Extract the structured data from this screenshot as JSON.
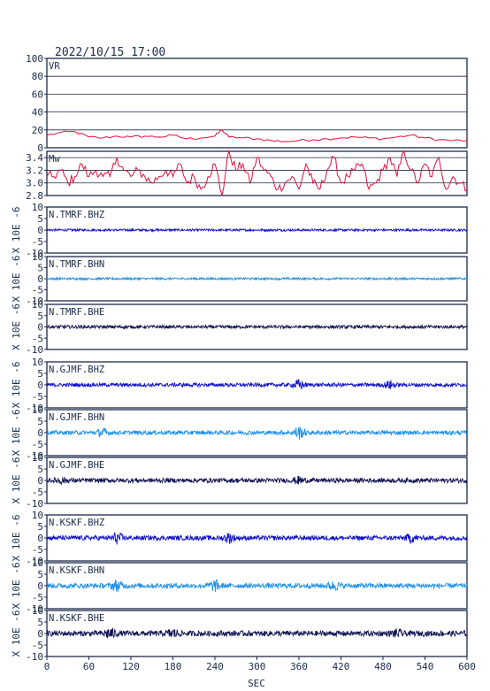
{
  "header": {
    "datetime": "2022/10/15 17:00"
  },
  "colors": {
    "frame": "#1c2a4a",
    "vr_line": "#e0103c",
    "mw_line": "#e0103c",
    "z_trace": "#1010c8",
    "n_trace": "#1e90e8",
    "e_trace": "#101050"
  },
  "chart_data": [
    {
      "type": "line",
      "panel": "vr",
      "label": "VR",
      "ylim": [
        0,
        100
      ],
      "yticks": [
        0,
        20,
        40,
        60,
        80,
        100
      ],
      "grid": true,
      "x": [
        0,
        20,
        40,
        60,
        80,
        100,
        120,
        140,
        160,
        180,
        200,
        220,
        240,
        250,
        260,
        280,
        300,
        320,
        340,
        360,
        380,
        400,
        420,
        440,
        460,
        480,
        500,
        520,
        540,
        560,
        580,
        600
      ],
      "values": [
        14,
        17,
        18,
        12,
        11,
        13,
        12,
        13,
        12,
        14,
        10,
        11,
        13,
        20,
        12,
        11,
        10,
        8,
        7,
        8,
        9,
        10,
        11,
        12,
        11,
        10,
        12,
        14,
        11,
        9,
        8,
        8
      ]
    },
    {
      "type": "line",
      "panel": "mw",
      "label": "Mw",
      "ylim": [
        2.8,
        3.5
      ],
      "yticks": [
        2.8,
        3.0,
        3.2,
        3.4
      ],
      "grid": true,
      "x": [
        0,
        10,
        20,
        30,
        40,
        50,
        60,
        70,
        80,
        90,
        100,
        110,
        120,
        130,
        140,
        150,
        160,
        170,
        180,
        190,
        200,
        210,
        220,
        230,
        240,
        250,
        260,
        270,
        280,
        290,
        300,
        310,
        320,
        330,
        340,
        350,
        360,
        370,
        380,
        390,
        400,
        410,
        420,
        430,
        440,
        450,
        460,
        470,
        480,
        490,
        500,
        510,
        520,
        530,
        540,
        550,
        560,
        570,
        580,
        590,
        600
      ],
      "values": [
        3.1,
        3.1,
        3.2,
        3.0,
        3.1,
        3.3,
        3.1,
        3.2,
        3.1,
        3.1,
        3.4,
        3.2,
        3.1,
        3.2,
        3.1,
        3.0,
        3.1,
        3.2,
        3.1,
        3.3,
        3.0,
        3.1,
        2.9,
        3.1,
        3.3,
        2.8,
        3.5,
        3.2,
        3.3,
        3.0,
        3.4,
        3.2,
        3.1,
        2.9,
        3.0,
        3.1,
        2.9,
        3.3,
        3.0,
        2.9,
        3.2,
        3.4,
        3.0,
        3.1,
        3.2,
        3.3,
        2.9,
        3.0,
        3.2,
        3.4,
        3.1,
        3.5,
        3.2,
        3.0,
        3.3,
        3.1,
        3.4,
        2.9,
        3.1,
        3.0,
        2.9
      ]
    },
    {
      "type": "line",
      "panel": "waveform",
      "label": "N.TMRF.BHZ",
      "ylim": [
        -10,
        10
      ],
      "yticks": [
        -10,
        -5,
        0,
        5,
        10
      ],
      "ylabel": "X 10E -6",
      "color_key": "z_trace",
      "amplitude": 0.5,
      "bursts": []
    },
    {
      "type": "line",
      "panel": "waveform",
      "label": "N.TMRF.BHN",
      "ylim": [
        -10,
        10
      ],
      "yticks": [
        -10,
        -5,
        0,
        5,
        10
      ],
      "ylabel": "X 10E -6",
      "color_key": "n_trace",
      "amplitude": 0.5,
      "bursts": []
    },
    {
      "type": "line",
      "panel": "waveform",
      "label": "N.TMRF.BHE",
      "ylim": [
        -10,
        10
      ],
      "yticks": [
        -10,
        -5,
        0,
        5,
        10
      ],
      "ylabel": "X 10E -6",
      "color_key": "e_trace",
      "amplitude": 0.7,
      "bursts": []
    },
    {
      "type": "line",
      "panel": "waveform",
      "label": "N.GJMF.BHZ",
      "ylim": [
        -10,
        10
      ],
      "yticks": [
        -10,
        -5,
        0,
        5,
        10
      ],
      "ylabel": "X 10E -6",
      "color_key": "z_trace",
      "amplitude": 0.8,
      "bursts": [
        [
          360,
          2.0
        ],
        [
          490,
          1.5
        ]
      ]
    },
    {
      "type": "line",
      "panel": "waveform",
      "label": "N.GJMF.BHN",
      "ylim": [
        -10,
        10
      ],
      "yticks": [
        -10,
        -5,
        0,
        5,
        10
      ],
      "ylabel": "X 10E -6",
      "color_key": "n_trace",
      "amplitude": 0.9,
      "bursts": [
        [
          80,
          1.5
        ],
        [
          360,
          2.5
        ]
      ]
    },
    {
      "type": "line",
      "panel": "waveform",
      "label": "N.GJMF.BHE",
      "ylim": [
        -10,
        10
      ],
      "yticks": [
        -10,
        -5,
        0,
        5,
        10
      ],
      "ylabel": "X 10E -6",
      "color_key": "e_trace",
      "amplitude": 1.0,
      "bursts": [
        [
          20,
          1.0
        ],
        [
          360,
          1.2
        ]
      ]
    },
    {
      "type": "line",
      "panel": "waveform",
      "label": "N.KSKF.BHZ",
      "ylim": [
        -10,
        10
      ],
      "yticks": [
        -10,
        -5,
        0,
        5,
        10
      ],
      "ylabel": "X 10E -6",
      "color_key": "z_trace",
      "amplitude": 1.0,
      "bursts": [
        [
          100,
          2.0
        ],
        [
          260,
          1.8
        ],
        [
          520,
          1.5
        ]
      ]
    },
    {
      "type": "line",
      "panel": "waveform",
      "label": "N.KSKF.BHN",
      "ylim": [
        -10,
        10
      ],
      "yticks": [
        -10,
        -5,
        0,
        5,
        10
      ],
      "ylabel": "X 10E -6",
      "color_key": "n_trace",
      "amplitude": 1.1,
      "bursts": [
        [
          100,
          2.0
        ],
        [
          240,
          2.0
        ],
        [
          410,
          1.5
        ]
      ]
    },
    {
      "type": "line",
      "panel": "waveform",
      "label": "N.KSKF.BHE",
      "ylim": [
        -10,
        10
      ],
      "yticks": [
        -10,
        -5,
        0,
        5,
        10
      ],
      "ylabel": "X 10E -6",
      "color_key": "e_trace",
      "amplitude": 1.2,
      "bursts": [
        [
          90,
          2.0
        ],
        [
          180,
          1.5
        ],
        [
          500,
          1.2
        ]
      ]
    }
  ],
  "x_axis": {
    "xlim": [
      0,
      600
    ],
    "ticks": [
      0,
      60,
      120,
      180,
      240,
      300,
      360,
      420,
      480,
      540,
      600
    ],
    "label": "SEC"
  }
}
